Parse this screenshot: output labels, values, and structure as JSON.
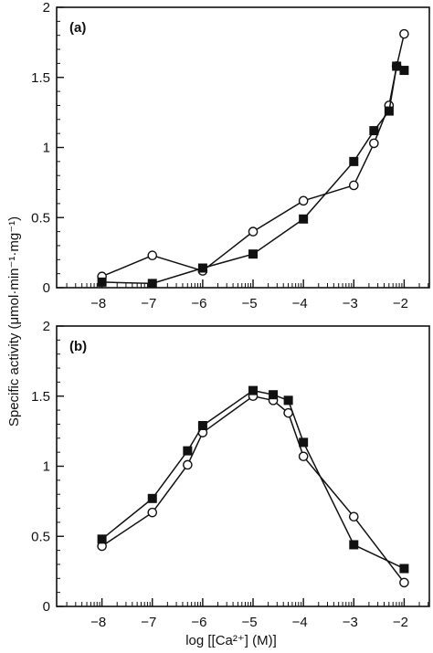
{
  "figure": {
    "ylabel": "Specific activity (μmol·min⁻¹·mg⁻¹)",
    "xlabel": "log [[Ca²⁺] (M)]"
  },
  "chart_data": [
    {
      "type": "line",
      "panel_label": "(a)",
      "xlim": [
        -8.9,
        -1.5
      ],
      "ylim": [
        0,
        2
      ],
      "x_ticks": [
        -8,
        -7,
        -6,
        -5,
        -4,
        -3,
        -2
      ],
      "y_ticks": [
        0,
        0.5,
        1,
        1.5,
        2
      ],
      "y_tick_labels": [
        "0",
        "0.5",
        "1",
        "1.5",
        "2"
      ],
      "grid": false,
      "series": [
        {
          "marker": "open-circle",
          "x": [
            -8,
            -7,
            -6,
            -5,
            -4,
            -3,
            -2.6,
            -2.3,
            -2.15,
            -2
          ],
          "y": [
            0.08,
            0.23,
            0.12,
            0.4,
            0.62,
            0.73,
            1.03,
            1.3,
            1.58,
            1.81
          ]
        },
        {
          "marker": "filled-square",
          "x": [
            -8,
            -7,
            -6,
            -5,
            -4,
            -3,
            -2.6,
            -2.3,
            -2.15,
            -2
          ],
          "y": [
            0.04,
            0.03,
            0.14,
            0.24,
            0.49,
            0.9,
            1.12,
            1.26,
            1.58,
            1.55
          ]
        }
      ]
    },
    {
      "type": "line",
      "panel_label": "(b)",
      "xlim": [
        -8.9,
        -1.5
      ],
      "ylim": [
        0,
        2
      ],
      "x_ticks": [
        -8,
        -7,
        -6,
        -5,
        -4,
        -3,
        -2
      ],
      "y_ticks": [
        0,
        0.5,
        1,
        1.5,
        2
      ],
      "y_tick_labels": [
        "0",
        "0.5",
        "1",
        "1.5",
        "2"
      ],
      "grid": false,
      "series": [
        {
          "marker": "open-circle",
          "x": [
            -8,
            -7,
            -6.3,
            -6,
            -5,
            -4.6,
            -4.3,
            -4,
            -3,
            -2
          ],
          "y": [
            0.43,
            0.67,
            1.01,
            1.24,
            1.5,
            1.47,
            1.38,
            1.07,
            0.64,
            0.17
          ]
        },
        {
          "marker": "filled-square",
          "x": [
            -8,
            -7,
            -6.3,
            -6,
            -5,
            -4.6,
            -4.3,
            -4,
            -3,
            -2
          ],
          "y": [
            0.48,
            0.77,
            1.11,
            1.29,
            1.54,
            1.51,
            1.47,
            1.17,
            0.44,
            0.27
          ]
        }
      ]
    }
  ]
}
